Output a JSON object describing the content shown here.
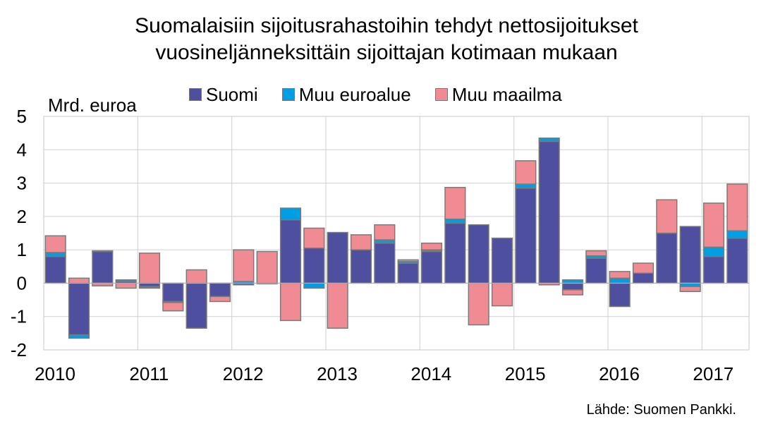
{
  "title_line1": "Suomalaisiin sijoitusrahastoihin tehdyt nettosijoitukset",
  "title_line2": "vuosineljänneksittäin sijoittajan kotimaan mukaan",
  "unit_label": "Mrd. euroa",
  "source": "Lähde: Suomen Pankki.",
  "chart_data": {
    "type": "bar",
    "stacked": true,
    "ylim": [
      -2,
      5
    ],
    "yticks": [
      -2,
      -1,
      0,
      1,
      2,
      3,
      4,
      5
    ],
    "grid": true,
    "legend_position": "top",
    "year_labels": [
      "2010",
      "2011",
      "2012",
      "2013",
      "2014",
      "2015",
      "2016",
      "2017"
    ],
    "quarters_per_year": 4,
    "series": [
      {
        "name": "Suomi",
        "color": "#4f4fa0",
        "values": [
          0.8,
          -1.55,
          0.95,
          0.05,
          -0.1,
          -0.55,
          -1.35,
          -0.4,
          -0.05,
          -0.02,
          1.9,
          1.05,
          1.52,
          1.0,
          1.2,
          0.6,
          0.95,
          1.8,
          1.75,
          1.35,
          2.85,
          4.25,
          -0.2,
          0.75,
          -0.7,
          0.3,
          1.5,
          1.7,
          0.8,
          1.35
        ]
      },
      {
        "name": "Muu euroalue",
        "color": "#009fe3",
        "values": [
          0.12,
          -0.1,
          0.02,
          0.05,
          -0.05,
          -0.03,
          0.0,
          0.0,
          0.05,
          0.0,
          0.35,
          -0.15,
          0.0,
          0.0,
          0.1,
          0.05,
          0.05,
          0.12,
          0.0,
          0.0,
          0.12,
          0.1,
          0.1,
          0.07,
          0.15,
          0.0,
          0.0,
          -0.1,
          0.28,
          0.22
        ]
      },
      {
        "name": "Muu maailma",
        "color": "#f08b94",
        "values": [
          0.5,
          0.15,
          -0.08,
          -0.15,
          0.9,
          -0.25,
          0.4,
          -0.15,
          0.95,
          0.95,
          -1.12,
          0.6,
          -1.35,
          0.45,
          0.45,
          0.05,
          0.2,
          0.95,
          -1.25,
          -0.68,
          0.7,
          -0.05,
          -0.15,
          0.15,
          0.2,
          0.3,
          1.0,
          -0.15,
          1.32,
          1.4
        ]
      }
    ]
  }
}
